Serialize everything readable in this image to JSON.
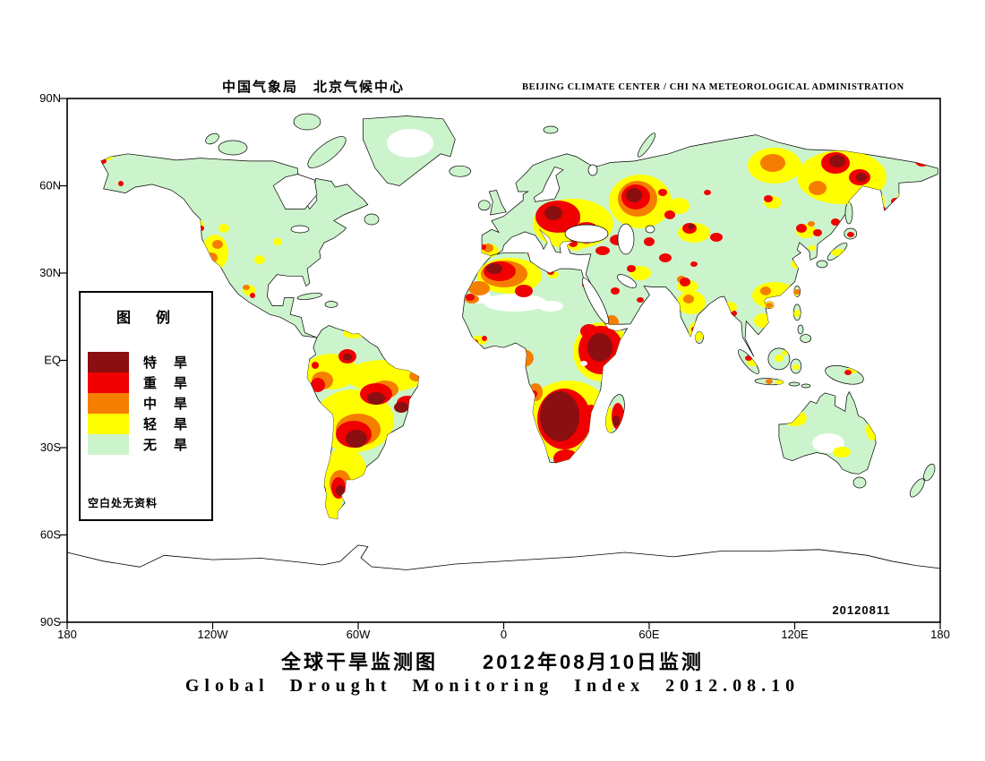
{
  "header": {
    "left": "中国气象局　北京气候中心",
    "right": "BEIJING CLIMATE CENTER / CHI NA METEOROLOGICAL ADMINISTRATION"
  },
  "axes": {
    "lat_labels": [
      "90N",
      "60N",
      "30N",
      "EQ",
      "30S",
      "60S",
      "90S"
    ],
    "lon_labels": [
      "180",
      "120W",
      "60W",
      "0",
      "60E",
      "120E",
      "180"
    ]
  },
  "legend": {
    "title": "图　例",
    "items": [
      {
        "level": "d",
        "label": "特　旱",
        "color": "#8b0f10"
      },
      {
        "level": "r",
        "label": "重　旱",
        "color": "#f00000"
      },
      {
        "level": "o",
        "label": "中　旱",
        "color": "#f57e00"
      },
      {
        "level": "y",
        "label": "轻　旱",
        "color": "#ffff00"
      },
      {
        "level": "g",
        "label": "无　旱",
        "color": "#ccf4cc"
      }
    ],
    "note": "空白处无资料"
  },
  "map": {
    "date_stamp": "20120811",
    "level_colors": {
      "d": "#8b0f10",
      "r": "#f00000",
      "o": "#f57e00",
      "y": "#ffff00",
      "g": "#ccf4cc",
      "w": "#ffffff"
    },
    "blobs": [
      [
        "w",
        383,
        50,
        26,
        16
      ],
      [
        "w",
        500,
        228,
        35,
        10
      ],
      [
        "w",
        462,
        222,
        12,
        7
      ],
      [
        "w",
        540,
        232,
        14,
        6
      ],
      [
        "w",
        850,
        385,
        18,
        11
      ],
      [
        "y",
        165,
        172,
        15,
        20
      ],
      [
        "y",
        148,
        140,
        5,
        4
      ],
      [
        "y",
        215,
        180,
        6,
        5
      ],
      [
        "y",
        235,
        160,
        5,
        4
      ],
      [
        "y",
        175,
        145,
        6,
        5
      ],
      [
        "y",
        180,
        222,
        4,
        7
      ],
      [
        "y",
        203,
        214,
        7,
        6
      ],
      [
        "y",
        45,
        65,
        6,
        4
      ],
      [
        "y",
        295,
        305,
        30,
        20
      ],
      [
        "y",
        355,
        310,
        45,
        18
      ],
      [
        "y",
        320,
        360,
        45,
        35
      ],
      [
        "y",
        310,
        420,
        25,
        30
      ],
      [
        "y",
        297,
        460,
        10,
        35
      ],
      [
        "y",
        320,
        262,
        12,
        6
      ],
      [
        "y",
        470,
        170,
        12,
        8
      ],
      [
        "y",
        407,
        104,
        4,
        3
      ],
      [
        "y",
        445,
        95,
        10,
        8
      ],
      [
        "y",
        565,
        140,
        45,
        28
      ],
      [
        "y",
        640,
        115,
        35,
        30
      ],
      [
        "y",
        515,
        168,
        6,
        5
      ],
      [
        "y",
        568,
        165,
        8,
        5
      ],
      [
        "y",
        494,
        198,
        36,
        20
      ],
      [
        "y",
        543,
        197,
        6,
        4
      ],
      [
        "y",
        460,
        270,
        9,
        5
      ],
      [
        "y",
        597,
        283,
        32,
        33
      ],
      [
        "y",
        560,
        360,
        50,
        45
      ],
      [
        "y",
        565,
        405,
        18,
        11
      ],
      [
        "y",
        640,
        195,
        12,
        8
      ],
      [
        "y",
        700,
        150,
        18,
        11
      ],
      [
        "y",
        683,
        120,
        12,
        9
      ],
      [
        "y",
        693,
        210,
        12,
        7
      ],
      [
        "y",
        697,
        228,
        16,
        13
      ],
      [
        "y",
        703,
        260,
        9,
        11
      ],
      [
        "y",
        740,
        233,
        8,
        6
      ],
      [
        "y",
        790,
        75,
        30,
        20
      ],
      [
        "y",
        865,
        88,
        50,
        30
      ],
      [
        "y",
        788,
        116,
        10,
        7
      ],
      [
        "y",
        935,
        110,
        8,
        6
      ],
      [
        "y",
        960,
        66,
        10,
        8
      ],
      [
        "y",
        908,
        116,
        5,
        9
      ],
      [
        "y",
        825,
        148,
        11,
        8
      ],
      [
        "y",
        862,
        172,
        9,
        4
      ],
      [
        "y",
        832,
        167,
        4,
        3
      ],
      [
        "y",
        790,
        220,
        25,
        15
      ],
      [
        "y",
        815,
        185,
        7,
        5
      ],
      [
        "y",
        777,
        248,
        10,
        8
      ],
      [
        "y",
        766,
        295,
        7,
        4
      ],
      [
        "y",
        795,
        290,
        5,
        4
      ],
      [
        "y",
        802,
        284,
        4,
        3
      ],
      [
        "y",
        796,
        317,
        5,
        3
      ],
      [
        "y",
        814,
        300,
        4,
        3
      ],
      [
        "y",
        815,
        240,
        4,
        4
      ],
      [
        "y",
        878,
        303,
        6,
        4
      ],
      [
        "y",
        813,
        357,
        13,
        9
      ],
      [
        "y",
        900,
        370,
        8,
        12
      ],
      [
        "y",
        865,
        395,
        10,
        6
      ],
      [
        "o",
        161,
        178,
        7,
        6
      ],
      [
        "o",
        168,
        163,
        6,
        5
      ],
      [
        "o",
        200,
        211,
        4,
        3
      ],
      [
        "o",
        285,
        315,
        12,
        10
      ],
      [
        "o",
        355,
        325,
        15,
        10
      ],
      [
        "o",
        325,
        370,
        25,
        18
      ],
      [
        "o",
        305,
        430,
        12,
        15
      ],
      [
        "o",
        390,
        310,
        8,
        6
      ],
      [
        "o",
        470,
        167,
        6,
        5
      ],
      [
        "o",
        555,
        136,
        18,
        14
      ],
      [
        "o",
        637,
        112,
        22,
        20
      ],
      [
        "o",
        488,
        196,
        26,
        15
      ],
      [
        "o",
        460,
        212,
        12,
        8
      ],
      [
        "o",
        452,
        224,
        8,
        5
      ],
      [
        "o",
        509,
        290,
        12,
        10
      ],
      [
        "o",
        523,
        328,
        8,
        10
      ],
      [
        "o",
        608,
        250,
        8,
        8
      ],
      [
        "o",
        686,
        202,
        5,
        4
      ],
      [
        "o",
        694,
        224,
        6,
        5
      ],
      [
        "o",
        788,
        72,
        14,
        10
      ],
      [
        "o",
        838,
        100,
        10,
        8
      ],
      [
        "o",
        831,
        140,
        4,
        3
      ],
      [
        "o",
        780,
        215,
        6,
        5
      ],
      [
        "o",
        784,
        231,
        4,
        3
      ],
      [
        "o",
        815,
        216,
        4,
        3
      ],
      [
        "o",
        784,
        316,
        4,
        3
      ],
      [
        "o",
        809,
        352,
        4,
        3
      ],
      [
        "r",
        158,
        184,
        4,
        3
      ],
      [
        "r",
        150,
        145,
        3,
        3
      ],
      [
        "r",
        207,
        220,
        3,
        3
      ],
      [
        "r",
        40,
        70,
        4,
        3
      ],
      [
        "r",
        60,
        95,
        3,
        3
      ],
      [
        "r",
        280,
        320,
        8,
        8
      ],
      [
        "r",
        345,
        330,
        18,
        12
      ],
      [
        "r",
        320,
        375,
        20,
        15
      ],
      [
        "r",
        303,
        435,
        8,
        12
      ],
      [
        "r",
        295,
        480,
        6,
        8
      ],
      [
        "r",
        313,
        288,
        10,
        8
      ],
      [
        "r",
        277,
        298,
        4,
        4
      ],
      [
        "r",
        380,
        340,
        12,
        8
      ],
      [
        "r",
        465,
        166,
        3,
        3
      ],
      [
        "r",
        452,
        97,
        3,
        3
      ],
      [
        "r",
        470,
        78,
        4,
        3
      ],
      [
        "r",
        548,
        132,
        25,
        18
      ],
      [
        "r",
        580,
        150,
        15,
        12
      ],
      [
        "r",
        635,
        110,
        16,
        14
      ],
      [
        "r",
        665,
        105,
        5,
        4
      ],
      [
        "r",
        673,
        130,
        6,
        5
      ],
      [
        "r",
        518,
        173,
        4,
        4
      ],
      [
        "r",
        565,
        162,
        5,
        4
      ],
      [
        "r",
        598,
        170,
        8,
        5
      ],
      [
        "r",
        615,
        158,
        9,
        6
      ],
      [
        "r",
        483,
        193,
        18,
        11
      ],
      [
        "r",
        510,
        215,
        10,
        7
      ],
      [
        "r",
        450,
        222,
        5,
        4
      ],
      [
        "r",
        540,
        194,
        4,
        3
      ],
      [
        "r",
        578,
        208,
        3,
        3
      ],
      [
        "r",
        455,
        272,
        4,
        3
      ],
      [
        "r",
        466,
        268,
        3,
        3
      ],
      [
        "r",
        596,
        281,
        25,
        27
      ],
      [
        "r",
        583,
        260,
        10,
        8
      ],
      [
        "r",
        555,
        358,
        30,
        34
      ],
      [
        "r",
        585,
        355,
        9,
        13
      ],
      [
        "r",
        557,
        402,
        14,
        10
      ],
      [
        "r",
        615,
        355,
        7,
        15
      ],
      [
        "r",
        521,
        330,
        4,
        4
      ],
      [
        "r",
        612,
        215,
        5,
        4
      ],
      [
        "r",
        640,
        225,
        4,
        3
      ],
      [
        "r",
        630,
        190,
        5,
        4
      ],
      [
        "r",
        650,
        160,
        6,
        5
      ],
      [
        "r",
        668,
        178,
        7,
        5
      ],
      [
        "r",
        695,
        145,
        8,
        6
      ],
      [
        "r",
        725,
        155,
        7,
        5
      ],
      [
        "r",
        715,
        105,
        4,
        3
      ],
      [
        "r",
        690,
        205,
        6,
        5
      ],
      [
        "r",
        700,
        185,
        4,
        3
      ],
      [
        "r",
        700,
        258,
        3,
        3
      ],
      [
        "r",
        745,
        240,
        3,
        3
      ],
      [
        "r",
        858,
        72,
        16,
        12
      ],
      [
        "r",
        885,
        88,
        12,
        9
      ],
      [
        "r",
        783,
        112,
        5,
        4
      ],
      [
        "r",
        925,
        115,
        5,
        4
      ],
      [
        "r",
        955,
        70,
        8,
        6
      ],
      [
        "r",
        978,
        82,
        4,
        3
      ],
      [
        "r",
        910,
        124,
        4,
        4
      ],
      [
        "r",
        820,
        145,
        6,
        5
      ],
      [
        "r",
        838,
        150,
        5,
        4
      ],
      [
        "r",
        858,
        138,
        5,
        4
      ],
      [
        "r",
        875,
        152,
        4,
        3
      ],
      [
        "r",
        761,
        290,
        4,
        3
      ],
      [
        "r",
        872,
        306,
        4,
        3
      ],
      [
        "r",
        901,
        363,
        3,
        3
      ],
      [
        "d",
        313,
        289,
        5,
        4
      ],
      [
        "d",
        345,
        335,
        10,
        7
      ],
      [
        "d",
        323,
        380,
        12,
        10
      ],
      [
        "d",
        305,
        438,
        5,
        6
      ],
      [
        "d",
        373,
        345,
        8,
        6
      ],
      [
        "d",
        543,
        128,
        10,
        8
      ],
      [
        "d",
        583,
        152,
        6,
        5
      ],
      [
        "d",
        633,
        108,
        9,
        8
      ],
      [
        "d",
        619,
        158,
        4,
        3
      ],
      [
        "d",
        477,
        190,
        9,
        6
      ],
      [
        "d",
        595,
        278,
        14,
        16
      ],
      [
        "d",
        550,
        355,
        22,
        28
      ],
      [
        "d",
        613,
        360,
        4,
        6
      ],
      [
        "d",
        697,
        143,
        4,
        3
      ],
      [
        "d",
        860,
        70,
        9,
        7
      ],
      [
        "d",
        887,
        88,
        6,
        5
      ]
    ]
  },
  "titles": {
    "chinese": "全球干旱监测图　　2012年08月10日监测",
    "english": "Global Drought Monitoring Index  2012.08.10"
  }
}
